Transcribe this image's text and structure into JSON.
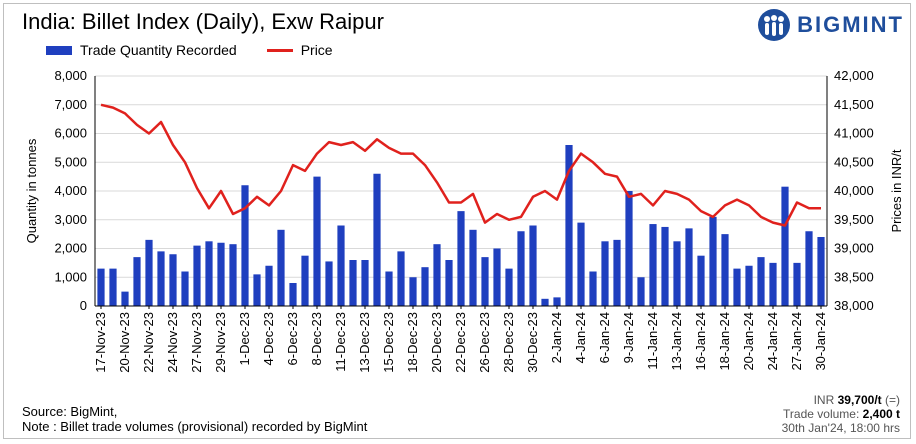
{
  "header": {
    "title": "India: Billet Index (Daily), Exw Raipur",
    "brand": "BIGMINT"
  },
  "footer": {
    "source": "Source: BigMint,",
    "note": "Note : Billet trade volumes (provisional) recorded by BigMint",
    "price_currency": "INR",
    "price_value": "39,700/t",
    "price_change": "(=)",
    "volume_label": "Trade volume:",
    "volume_value": "2,400 t",
    "timestamp": "30th Jan'24, 18:00 hrs"
  },
  "colors": {
    "bars": "#1f3fbf",
    "line": "#e0211d",
    "brand": "#1f4e9c",
    "grid": "#d9d9d9"
  },
  "chart_data": {
    "type": "bar+line",
    "title": "India: Billet Index (Daily), Exw Raipur",
    "ylabel_left": "Quantity in tonnes",
    "ylabel_right": "Prices in INR/t",
    "ylim_left": [
      0,
      8000
    ],
    "ylim_right": [
      38000,
      42000
    ],
    "yticks_left": [
      "0",
      "1,000",
      "2,000",
      "3,000",
      "4,000",
      "5,000",
      "6,000",
      "7,000",
      "8,000"
    ],
    "yticks_right": [
      "38,000",
      "38,500",
      "39,000",
      "39,500",
      "40,000",
      "40,500",
      "41,000",
      "41,500",
      "42,000"
    ],
    "grid": "horizontal",
    "legend_position": "top-left",
    "x_tick_labels": [
      "17-Nov-23",
      "20-Nov-23",
      "22-Nov-23",
      "24-Nov-23",
      "27-Nov-23",
      "29-Nov-23",
      "1-Dec-23",
      "4-Dec-23",
      "6-Dec-23",
      "8-Dec-23",
      "11-Dec-23",
      "13-Dec-23",
      "15-Dec-23",
      "18-Dec-23",
      "20-Dec-23",
      "22-Dec-23",
      "26-Dec-23",
      "28-Dec-23",
      "30-Dec-23",
      "2-Jan-24",
      "4-Jan-24",
      "6-Jan-24",
      "9-Jan-24",
      "11-Jan-24",
      "13-Jan-24",
      "16-Jan-24",
      "18-Jan-24",
      "20-Jan-24",
      "24-Jan-24",
      "27-Jan-24",
      "30-Jan-24"
    ],
    "series": [
      {
        "name": "Trade Quantity Recorded",
        "type": "bar",
        "axis": "left",
        "values": [
          1300,
          1300,
          500,
          1700,
          2300,
          1900,
          1800,
          1200,
          2100,
          2250,
          2200,
          2150,
          4200,
          1100,
          1400,
          2650,
          800,
          1750,
          4500,
          1550,
          2800,
          1600,
          1600,
          4600,
          1200,
          1900,
          1000,
          1350,
          2150,
          1600,
          3300,
          2650,
          1700,
          2000,
          1300,
          2600,
          2800,
          250,
          300,
          5600,
          2900,
          1200,
          2250,
          2300,
          4000,
          1000,
          2850,
          2750,
          2250,
          2700,
          1750,
          3100,
          2500,
          1300,
          1400,
          1700,
          1500,
          4150,
          1500,
          2600,
          2400
        ]
      },
      {
        "name": "Price",
        "type": "line",
        "axis": "right",
        "values": [
          41500,
          41450,
          41350,
          41150,
          41000,
          41200,
          40800,
          40500,
          40050,
          39700,
          40000,
          39600,
          39700,
          39900,
          39750,
          40000,
          40450,
          40350,
          40650,
          40850,
          40800,
          40850,
          40700,
          40900,
          40750,
          40650,
          40650,
          40450,
          40150,
          39800,
          39800,
          39950,
          39450,
          39600,
          39500,
          39550,
          39900,
          40000,
          39850,
          40350,
          40650,
          40500,
          40300,
          40250,
          39900,
          39950,
          39750,
          40000,
          39950,
          39850,
          39650,
          39550,
          39750,
          39850,
          39750,
          39550,
          39450,
          39400,
          39800,
          39700,
          39700
        ]
      }
    ]
  }
}
